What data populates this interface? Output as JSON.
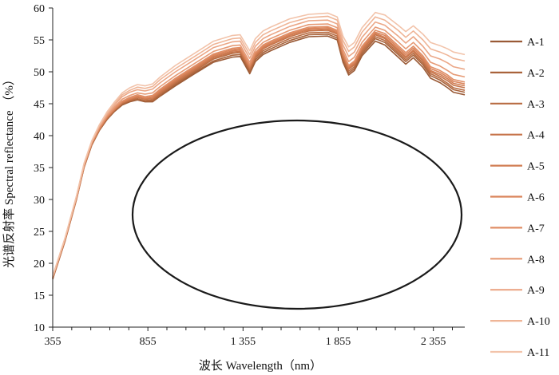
{
  "chart_data": {
    "type": "line",
    "title": "",
    "xlabel": "波长 Wavelength（nm）",
    "ylabel": "光谱反射率 Spectral reflectance （%）",
    "xlim": [
      355,
      2520
    ],
    "ylim": [
      10,
      60
    ],
    "x_ticks": [
      355,
      855,
      1355,
      1855,
      2355
    ],
    "x_tick_labels": [
      "355",
      "855",
      "1 355",
      "1 855",
      "2 355"
    ],
    "y_ticks": [
      10,
      15,
      20,
      25,
      30,
      35,
      40,
      45,
      50,
      55,
      60
    ],
    "y_tick_labels": [
      "10",
      "15",
      "20",
      "25",
      "30",
      "35",
      "40",
      "45",
      "50",
      "55",
      "60"
    ],
    "grid": false,
    "legend": "right",
    "x": [
      355,
      420,
      480,
      520,
      560,
      600,
      640,
      680,
      720,
      760,
      800,
      840,
      880,
      920,
      1000,
      1100,
      1200,
      1300,
      1340,
      1390,
      1420,
      1460,
      1500,
      1600,
      1700,
      1800,
      1850,
      1880,
      1910,
      1940,
      1980,
      2050,
      2100,
      2170,
      2210,
      2250,
      2300,
      2340,
      2390,
      2430,
      2460,
      2520
    ],
    "series": [
      {
        "name": "A-1",
        "color": "#9a5a36",
        "values": [
          17.5,
          23.5,
          30.0,
          35.0,
          38.5,
          40.8,
          42.5,
          43.8,
          44.8,
          45.3,
          45.6,
          45.3,
          45.3,
          46.2,
          47.8,
          49.7,
          51.5,
          52.3,
          52.4,
          49.7,
          51.6,
          52.7,
          53.3,
          54.6,
          55.5,
          55.6,
          55.0,
          51.5,
          49.5,
          50.2,
          52.5,
          54.8,
          54.2,
          52.3,
          51.2,
          52.2,
          50.7,
          49.0,
          48.3,
          47.5,
          46.8,
          46.4
        ]
      },
      {
        "name": "A-2",
        "color": "#a9633b",
        "values": [
          17.6,
          23.6,
          30.1,
          35.1,
          38.6,
          40.9,
          42.6,
          43.9,
          44.9,
          45.4,
          45.7,
          45.4,
          45.4,
          46.3,
          48.0,
          49.9,
          51.7,
          52.6,
          52.7,
          50.0,
          51.9,
          53.0,
          53.6,
          54.9,
          55.8,
          55.9,
          55.3,
          51.8,
          49.8,
          50.5,
          52.8,
          55.2,
          54.6,
          52.7,
          51.6,
          52.6,
          51.1,
          49.4,
          48.7,
          47.9,
          47.2,
          46.8
        ]
      },
      {
        "name": "A-3",
        "color": "#b86c42",
        "values": [
          17.6,
          23.6,
          30.1,
          35.1,
          38.6,
          40.9,
          42.7,
          44.0,
          45.0,
          45.5,
          45.8,
          45.5,
          45.6,
          46.5,
          48.2,
          50.1,
          52.0,
          52.9,
          53.0,
          50.3,
          52.2,
          53.3,
          53.9,
          55.2,
          56.1,
          56.2,
          55.6,
          52.1,
          50.1,
          50.8,
          53.1,
          55.5,
          54.9,
          53.0,
          51.9,
          52.9,
          51.4,
          49.7,
          49.0,
          48.2,
          47.5,
          47.1
        ]
      },
      {
        "name": "A-4",
        "color": "#c6744a",
        "values": [
          17.7,
          23.7,
          30.2,
          35.2,
          38.7,
          41.0,
          42.7,
          44.0,
          45.1,
          45.6,
          46.0,
          45.7,
          45.8,
          46.7,
          48.4,
          50.3,
          52.2,
          53.1,
          53.2,
          50.5,
          52.4,
          53.6,
          54.2,
          55.5,
          56.4,
          56.5,
          55.9,
          52.4,
          50.4,
          51.1,
          53.4,
          55.8,
          55.2,
          53.3,
          52.2,
          53.2,
          51.7,
          50.0,
          49.3,
          48.6,
          47.9,
          47.5
        ]
      },
      {
        "name": "A-5",
        "color": "#d07c52",
        "values": [
          17.7,
          23.7,
          30.2,
          35.2,
          38.7,
          41.0,
          42.8,
          44.1,
          45.2,
          45.7,
          46.1,
          45.8,
          45.9,
          46.9,
          48.6,
          50.5,
          52.4,
          53.3,
          53.4,
          50.7,
          52.6,
          53.8,
          54.4,
          55.7,
          56.6,
          56.7,
          56.1,
          52.6,
          50.6,
          51.3,
          53.6,
          56.0,
          55.4,
          53.5,
          52.4,
          53.4,
          51.9,
          50.2,
          49.6,
          48.9,
          48.2,
          47.8
        ]
      },
      {
        "name": "A-6",
        "color": "#da845a",
        "values": [
          17.8,
          23.8,
          30.3,
          35.3,
          38.8,
          41.1,
          42.9,
          44.2,
          45.3,
          45.8,
          46.2,
          45.9,
          46.1,
          47.1,
          48.8,
          50.7,
          52.6,
          53.5,
          53.6,
          50.9,
          52.8,
          54.0,
          54.6,
          55.9,
          56.8,
          56.9,
          56.3,
          52.8,
          50.8,
          51.5,
          53.8,
          56.2,
          55.7,
          53.8,
          52.7,
          53.7,
          52.2,
          50.5,
          49.9,
          49.2,
          48.5,
          48.1
        ]
      },
      {
        "name": "A-7",
        "color": "#e08e66",
        "values": [
          17.8,
          23.8,
          30.3,
          35.3,
          38.8,
          41.2,
          43.0,
          44.3,
          45.4,
          46.0,
          46.4,
          46.1,
          46.3,
          47.3,
          49.0,
          50.9,
          52.8,
          53.7,
          53.8,
          51.1,
          53.0,
          54.2,
          54.8,
          56.1,
          57.0,
          57.1,
          56.5,
          53.0,
          51.0,
          51.7,
          54.0,
          56.5,
          56.0,
          54.1,
          53.0,
          54.0,
          52.5,
          50.8,
          50.2,
          49.5,
          48.8,
          48.4
        ]
      },
      {
        "name": "A-8",
        "color": "#e69a75",
        "values": [
          17.9,
          23.9,
          30.4,
          35.4,
          38.9,
          41.3,
          43.1,
          44.5,
          45.7,
          46.3,
          46.7,
          46.5,
          46.7,
          47.7,
          49.4,
          51.3,
          53.2,
          54.1,
          54.2,
          51.5,
          53.4,
          54.6,
          55.2,
          56.5,
          57.4,
          57.5,
          56.9,
          53.5,
          51.6,
          52.3,
          54.6,
          57.0,
          56.5,
          54.7,
          53.6,
          54.6,
          53.1,
          51.5,
          50.9,
          50.2,
          49.6,
          49.2
        ]
      },
      {
        "name": "A-9",
        "color": "#eba787",
        "values": [
          17.9,
          23.9,
          30.5,
          35.5,
          39.0,
          41.5,
          43.3,
          44.8,
          46.1,
          46.8,
          47.2,
          47.0,
          47.3,
          48.3,
          50.0,
          51.9,
          53.8,
          54.7,
          54.8,
          52.1,
          54.0,
          55.2,
          55.8,
          57.1,
          58.0,
          58.1,
          57.5,
          54.2,
          52.4,
          53.1,
          55.4,
          57.8,
          57.3,
          55.6,
          54.5,
          55.5,
          54.0,
          52.5,
          52.0,
          51.4,
          50.8,
          50.4
        ]
      },
      {
        "name": "A-10",
        "color": "#efb597",
        "values": [
          18.0,
          24.0,
          30.5,
          35.6,
          39.1,
          41.6,
          43.5,
          45.0,
          46.4,
          47.1,
          47.6,
          47.4,
          47.7,
          48.8,
          50.5,
          52.4,
          54.3,
          55.2,
          55.3,
          52.7,
          54.6,
          55.8,
          56.4,
          57.7,
          58.5,
          58.7,
          58.1,
          54.9,
          53.2,
          53.9,
          56.2,
          58.6,
          58.1,
          56.5,
          55.4,
          56.4,
          55.0,
          53.6,
          53.1,
          52.6,
          52.1,
          51.7
        ]
      },
      {
        "name": "A-11",
        "color": "#f2c3aa",
        "values": [
          18.0,
          24.0,
          30.6,
          35.7,
          39.2,
          41.7,
          43.7,
          45.3,
          46.7,
          47.5,
          48.0,
          47.8,
          48.1,
          49.2,
          51.0,
          52.9,
          54.8,
          55.7,
          55.8,
          53.3,
          55.2,
          56.4,
          57.0,
          58.3,
          59.0,
          59.2,
          58.6,
          55.6,
          53.9,
          54.6,
          56.9,
          59.3,
          58.9,
          57.3,
          56.3,
          57.2,
          55.9,
          54.6,
          54.1,
          53.6,
          53.1,
          52.7
        ]
      }
    ]
  }
}
